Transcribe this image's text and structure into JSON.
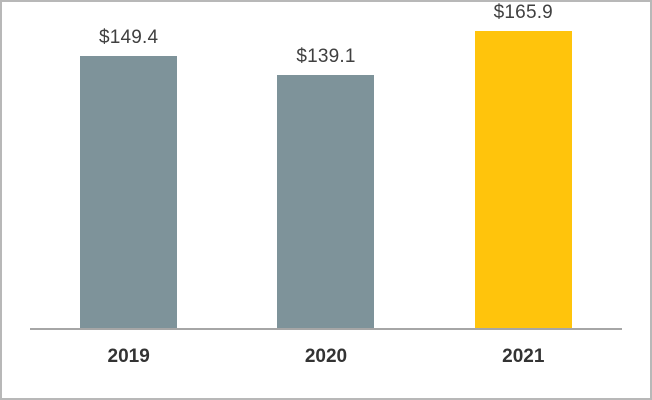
{
  "chart_data": {
    "type": "bar",
    "title": "",
    "xlabel": "",
    "ylabel": "",
    "categories": [
      "2019",
      "2020",
      "2021"
    ],
    "values": [
      149.4,
      139.1,
      165.9
    ],
    "value_labels": [
      "$149.4",
      "$139.1",
      "$165.9"
    ],
    "ylim": [
      0,
      180
    ],
    "grid": false,
    "legend": false,
    "bar_colors": [
      "#7E939A",
      "#7E939A",
      "#FFC40C"
    ],
    "axis_line_color": "#A6A6A6",
    "value_label_color": "#404040",
    "category_label_color": "#333333",
    "frame_border_color": "#B8B8B8"
  }
}
